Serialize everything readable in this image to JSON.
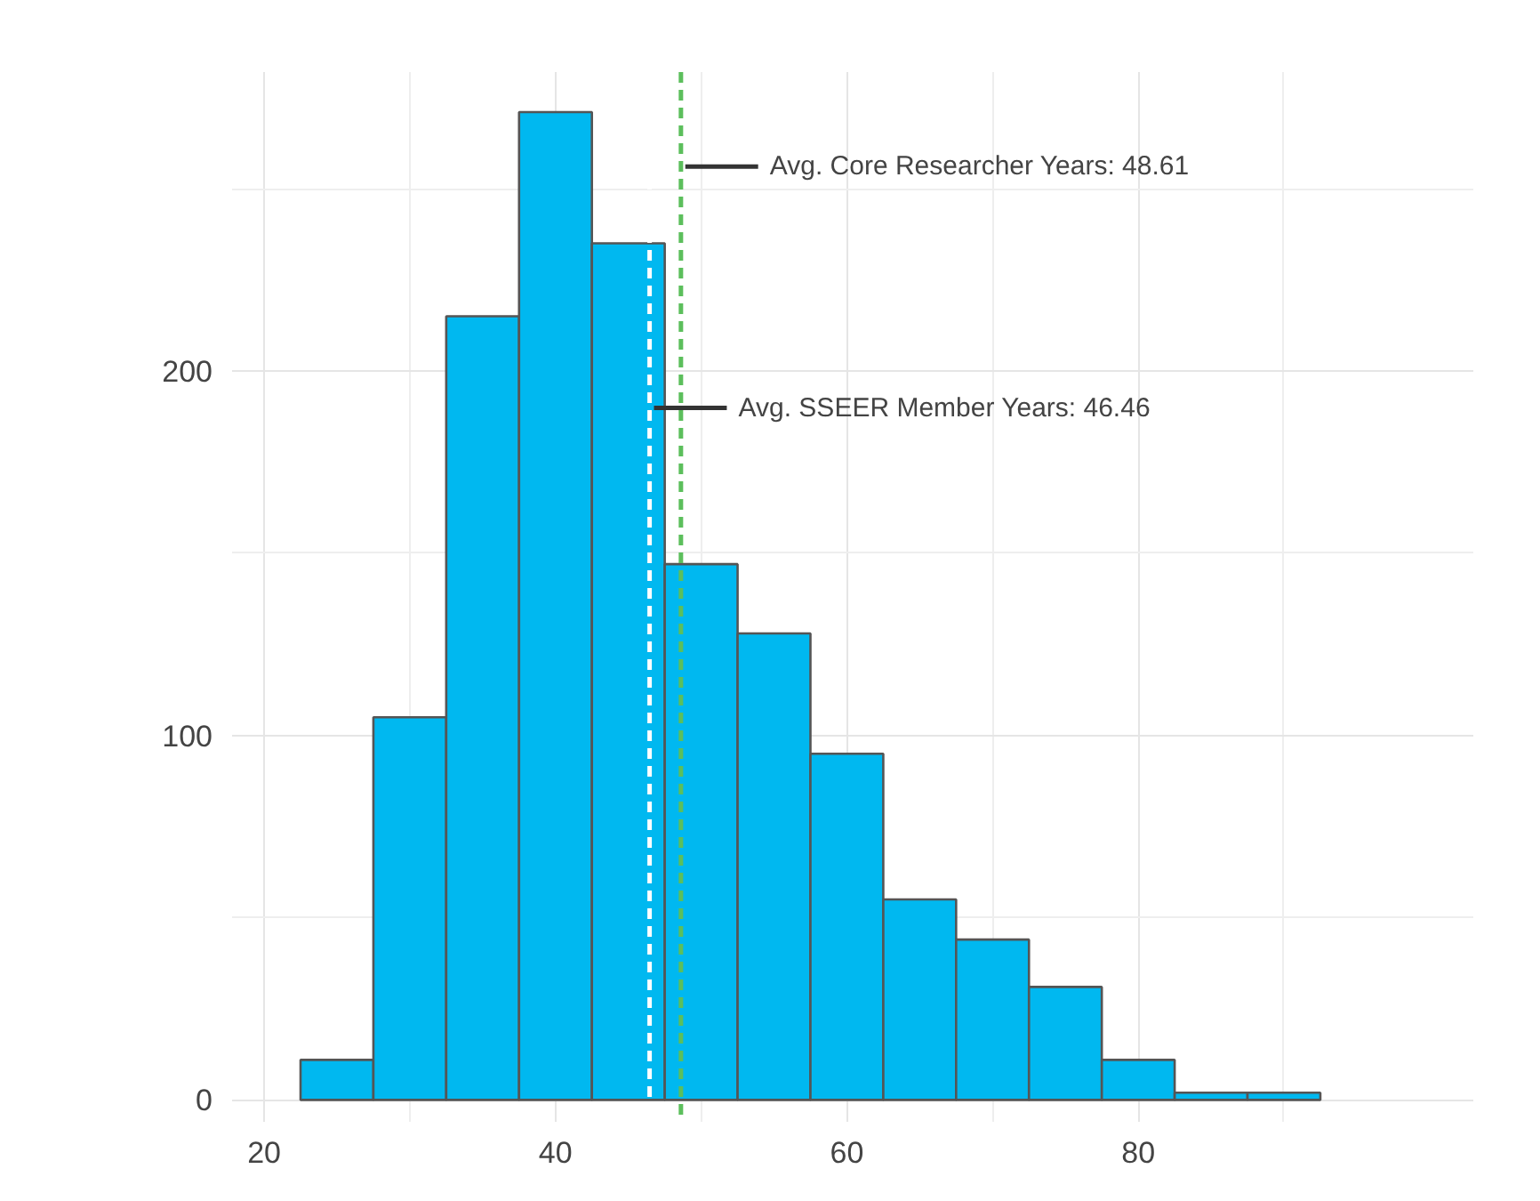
{
  "chart_data": {
    "type": "histogram",
    "bins": [
      22.5,
      27.5,
      32.5,
      37.5,
      42.5,
      47.5,
      52.5,
      57.5,
      62.5,
      67.5,
      72.5,
      77.5,
      82.5,
      87.5,
      92.5
    ],
    "values": [
      11,
      105,
      215,
      271,
      235,
      147,
      128,
      95,
      55,
      44,
      31,
      11,
      2,
      2
    ],
    "color": "#00b8f0",
    "xlim": [
      17.8,
      103
    ],
    "ylim": [
      -6,
      282
    ],
    "xticks": [
      20,
      40,
      60,
      80
    ],
    "yticks": [
      0,
      100,
      200
    ],
    "grid": true,
    "ref_lines": [
      {
        "axis": "x",
        "value": 46.46,
        "label": "Avg. SSEER Member Years: 46.46",
        "color": "#ffffff",
        "line_style": "dashed"
      },
      {
        "axis": "x",
        "value": 48.61,
        "label": "Avg. Core Researcher Years: 48.61",
        "color": "#5cbf5c",
        "line_style": "dashed"
      }
    ]
  }
}
